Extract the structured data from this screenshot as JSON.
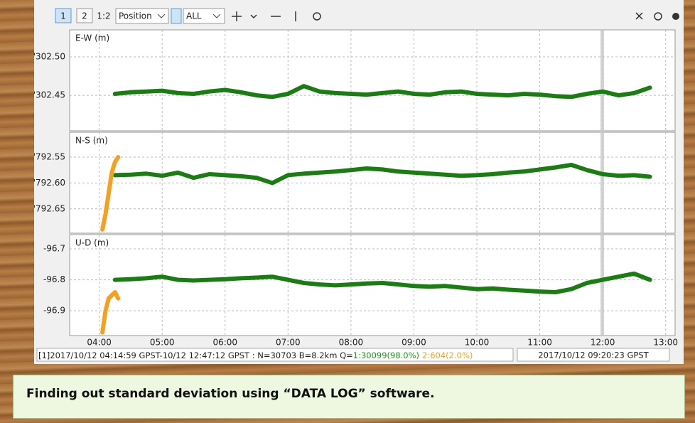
{
  "toolbar": {
    "buttons": [
      "1",
      "2",
      "1:2"
    ],
    "plot_type": "Position",
    "filter": "ALL"
  },
  "chart_data": [
    {
      "type": "scatter",
      "ylabel": "E-W (m)",
      "xlim": [
        3.53,
        13.15
      ],
      "ylim": [
        302.404,
        302.535
      ],
      "yticks": [
        {
          "value": 302.5,
          "label": "'302.50"
        },
        {
          "value": 302.45,
          "label": "'302.45"
        }
      ],
      "series": [
        {
          "color": "#1a7d12",
          "x": [
            4.25,
            4.5,
            4.75,
            5,
            5.25,
            5.5,
            5.75,
            6,
            6.25,
            6.5,
            6.75,
            7,
            7.25,
            7.5,
            7.75,
            8,
            8.25,
            8.5,
            8.75,
            9,
            9.25,
            9.5,
            9.75,
            10,
            10.25,
            10.5,
            10.75,
            11,
            11.25,
            11.5,
            11.75,
            12,
            12.25,
            12.5,
            12.75
          ],
          "values": [
            302.452,
            302.454,
            302.455,
            302.456,
            302.453,
            302.452,
            302.455,
            302.457,
            302.454,
            302.45,
            302.448,
            302.452,
            302.462,
            302.455,
            302.453,
            302.452,
            302.451,
            302.453,
            302.455,
            302.452,
            302.451,
            302.454,
            302.455,
            302.452,
            302.451,
            302.45,
            302.452,
            302.451,
            302.449,
            302.448,
            302.452,
            302.455,
            302.45,
            302.453,
            302.46
          ]
        }
      ]
    },
    {
      "type": "scatter",
      "ylabel": "N-S (m)",
      "xlim": [
        3.53,
        13.15
      ],
      "ylim": [
        792.697,
        792.502
      ],
      "yticks": [
        {
          "value": 792.55,
          "label": "'792.55"
        },
        {
          "value": 792.6,
          "label": "'792.60"
        },
        {
          "value": 792.65,
          "label": "'792.65"
        }
      ],
      "series": [
        {
          "color": "#1a7d12",
          "x": [
            4.25,
            4.5,
            4.75,
            5,
            5.25,
            5.5,
            5.75,
            6,
            6.25,
            6.5,
            6.75,
            7,
            7.25,
            7.5,
            7.75,
            8,
            8.25,
            8.5,
            8.75,
            9,
            9.25,
            9.5,
            9.75,
            10,
            10.25,
            10.5,
            10.75,
            11,
            11.25,
            11.5,
            11.75,
            12,
            12.25,
            12.5,
            12.75
          ],
          "values": [
            792.585,
            792.584,
            792.582,
            792.586,
            792.58,
            792.59,
            792.583,
            792.585,
            792.587,
            792.59,
            792.6,
            792.585,
            792.582,
            792.58,
            792.578,
            792.575,
            792.572,
            792.574,
            792.578,
            792.58,
            792.582,
            792.584,
            792.586,
            792.585,
            792.583,
            792.58,
            792.578,
            792.574,
            792.57,
            792.565,
            792.575,
            792.583,
            792.586,
            792.585,
            792.588
          ]
        },
        {
          "color": "#f5a11f",
          "x": [
            4.05,
            4.1,
            4.15,
            4.2,
            4.25,
            4.3
          ],
          "values": [
            792.69,
            792.66,
            792.62,
            792.58,
            792.56,
            792.55
          ]
        }
      ]
    },
    {
      "type": "scatter",
      "ylabel": "U-D (m)",
      "xlim": [
        3.53,
        13.15
      ],
      "ylim": [
        -96.98,
        -96.654
      ],
      "yticks": [
        -96.7,
        -96.8,
        -96.9
      ],
      "xticks": [
        {
          "value": 4,
          "label": "04:00"
        },
        {
          "value": 5,
          "label": "05:00"
        },
        {
          "value": 6,
          "label": "06:00"
        },
        {
          "value": 7,
          "label": "07:00"
        },
        {
          "value": 8,
          "label": "08:00"
        },
        {
          "value": 9,
          "label": "09:00"
        },
        {
          "value": 10,
          "label": "10:00"
        },
        {
          "value": 11,
          "label": "11:00"
        },
        {
          "value": 12,
          "label": "12:00"
        },
        {
          "value": 13,
          "label": "13:00"
        }
      ],
      "series": [
        {
          "color": "#1a7d12",
          "x": [
            4.25,
            4.5,
            4.75,
            5,
            5.25,
            5.5,
            5.75,
            6,
            6.25,
            6.5,
            6.75,
            7,
            7.25,
            7.5,
            7.75,
            8,
            8.25,
            8.5,
            8.75,
            9,
            9.25,
            9.5,
            9.75,
            10,
            10.25,
            10.5,
            10.75,
            11,
            11.25,
            11.5,
            11.75,
            12,
            12.25,
            12.5,
            12.75
          ],
          "values": [
            -96.8,
            -96.798,
            -96.795,
            -96.79,
            -96.8,
            -96.802,
            -96.8,
            -96.798,
            -96.795,
            -96.793,
            -96.79,
            -96.8,
            -96.81,
            -96.815,
            -96.818,
            -96.815,
            -96.812,
            -96.81,
            -96.815,
            -96.82,
            -96.822,
            -96.82,
            -96.825,
            -96.83,
            -96.828,
            -96.832,
            -96.835,
            -96.838,
            -96.84,
            -96.83,
            -96.81,
            -96.8,
            -96.79,
            -96.78,
            -96.8
          ]
        },
        {
          "color": "#f5a11f",
          "x": [
            4.05,
            4.1,
            4.15,
            4.2,
            4.25,
            4.3
          ],
          "values": [
            -96.97,
            -96.9,
            -96.86,
            -96.85,
            -96.84,
            -96.86
          ]
        }
      ]
    }
  ],
  "status": {
    "info": "[1]2017/10/12 04:14:59 GPST-10/12 12:47:12 GPST : N=30703 B=8.2km Q=",
    "q1": "1:30099(98.0%)",
    "q2": "2:604(2.0%)",
    "time": "2017/10/12 09:20:23 GPST"
  },
  "caption": "Finding out standard deviation using “DATA  LOG” software."
}
